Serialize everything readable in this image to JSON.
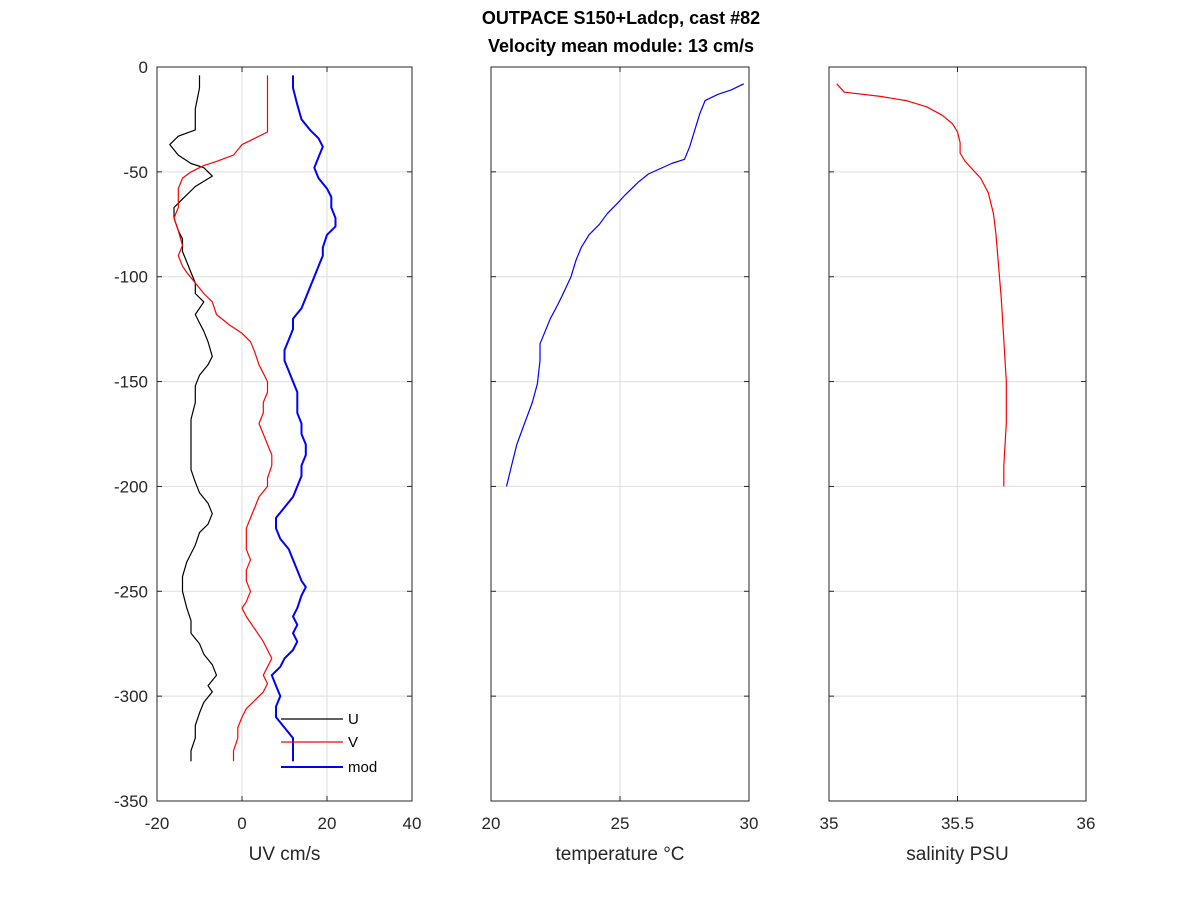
{
  "figure": {
    "title_line1": "OUTPACE S150+Ladcp, cast #82",
    "title_line2": "Velocity mean module:  13 cm/s"
  },
  "chart_data": [
    {
      "type": "line",
      "xlabel": "UV cm/s",
      "ylabel": "",
      "xlim": [
        -20,
        40
      ],
      "ylim": [
        -350,
        0
      ],
      "xticks": [
        -20,
        0,
        20,
        40
      ],
      "yticks": [
        -350,
        -300,
        -250,
        -200,
        -150,
        -100,
        -50,
        0
      ],
      "xtick_labels": [
        "-20",
        "0",
        "20",
        "40"
      ],
      "ytick_labels": [
        "-350",
        "-300",
        "-250",
        "-200",
        "-150",
        "-100",
        "-50",
        "0"
      ],
      "grid": true,
      "legend": "bottom-right",
      "series": [
        {
          "name": "U",
          "color": "#000000",
          "points": [
            [
              -10,
              -4
            ],
            [
              -10,
              -10
            ],
            [
              -11,
              -20
            ],
            [
              -11,
              -30
            ],
            [
              -15,
              -33
            ],
            [
              -17,
              -37
            ],
            [
              -15,
              -42
            ],
            [
              -12,
              -46
            ],
            [
              -9,
              -48
            ],
            [
              -7,
              -52
            ],
            [
              -11,
              -57
            ],
            [
              -14,
              -63
            ],
            [
              -16,
              -67
            ],
            [
              -16,
              -72
            ],
            [
              -15,
              -78
            ],
            [
              -14,
              -82
            ],
            [
              -14,
              -88
            ],
            [
              -13,
              -93
            ],
            [
              -12,
              -98
            ],
            [
              -11,
              -103
            ],
            [
              -11,
              -108
            ],
            [
              -9,
              -112
            ],
            [
              -11,
              -118
            ],
            [
              -10,
              -122
            ],
            [
              -9,
              -126
            ],
            [
              -8,
              -131
            ],
            [
              -7,
              -138
            ],
            [
              -8,
              -142
            ],
            [
              -10,
              -147
            ],
            [
              -11,
              -152
            ],
            [
              -11,
              -160
            ],
            [
              -12,
              -168
            ],
            [
              -12,
              -176
            ],
            [
              -12,
              -184
            ],
            [
              -12,
              -192
            ],
            [
              -11,
              -198
            ],
            [
              -10,
              -203
            ],
            [
              -8,
              -208
            ],
            [
              -7,
              -213
            ],
            [
              -8,
              -218
            ],
            [
              -10,
              -222
            ],
            [
              -11,
              -228
            ],
            [
              -13,
              -236
            ],
            [
              -14,
              -243
            ],
            [
              -14,
              -250
            ],
            [
              -13,
              -258
            ],
            [
              -12,
              -264
            ],
            [
              -12,
              -270
            ],
            [
              -10,
              -275
            ],
            [
              -9,
              -280
            ],
            [
              -7,
              -285
            ],
            [
              -6,
              -290
            ],
            [
              -8,
              -295
            ],
            [
              -7,
              -298
            ],
            [
              -9,
              -303
            ],
            [
              -10,
              -308
            ],
            [
              -11,
              -314
            ],
            [
              -11,
              -320
            ],
            [
              -12,
              -326
            ],
            [
              -12,
              -331
            ]
          ]
        },
        {
          "name": "V",
          "color": "#ff0000",
          "points": [
            [
              6,
              -4
            ],
            [
              6,
              -15
            ],
            [
              6,
              -25
            ],
            [
              6,
              -31
            ],
            [
              2,
              -35
            ],
            [
              0,
              -37
            ],
            [
              -2,
              -42
            ],
            [
              -6,
              -45
            ],
            [
              -9,
              -47
            ],
            [
              -12,
              -50
            ],
            [
              -14,
              -53
            ],
            [
              -15,
              -58
            ],
            [
              -15,
              -63
            ],
            [
              -15,
              -67
            ],
            [
              -16,
              -72
            ],
            [
              -15,
              -78
            ],
            [
              -14,
              -85
            ],
            [
              -15,
              -90
            ],
            [
              -14,
              -95
            ],
            [
              -13,
              -98
            ],
            [
              -11,
              -103
            ],
            [
              -9,
              -108
            ],
            [
              -7,
              -112
            ],
            [
              -6,
              -118
            ],
            [
              -3,
              -123
            ],
            [
              0,
              -127
            ],
            [
              2,
              -131
            ],
            [
              3,
              -136
            ],
            [
              4,
              -142
            ],
            [
              5,
              -146
            ],
            [
              6,
              -150
            ],
            [
              6,
              -155
            ],
            [
              5,
              -160
            ],
            [
              5,
              -165
            ],
            [
              4,
              -170
            ],
            [
              5,
              -175
            ],
            [
              6,
              -180
            ],
            [
              7,
              -185
            ],
            [
              7,
              -190
            ],
            [
              6,
              -196
            ],
            [
              6,
              -200
            ],
            [
              4,
              -205
            ],
            [
              3,
              -210
            ],
            [
              2,
              -215
            ],
            [
              1,
              -220
            ],
            [
              1,
              -225
            ],
            [
              1,
              -230
            ],
            [
              2,
              -235
            ],
            [
              1,
              -240
            ],
            [
              1,
              -245
            ],
            [
              2,
              -250
            ],
            [
              1,
              -255
            ],
            [
              0,
              -258
            ],
            [
              1,
              -262
            ],
            [
              3,
              -268
            ],
            [
              5,
              -274
            ],
            [
              6,
              -278
            ],
            [
              7,
              -282
            ],
            [
              6,
              -286
            ],
            [
              5,
              -290
            ],
            [
              6,
              -294
            ],
            [
              5,
              -298
            ],
            [
              3,
              -302
            ],
            [
              1,
              -306
            ],
            [
              0,
              -310
            ],
            [
              -1,
              -315
            ],
            [
              -1,
              -320
            ],
            [
              -2,
              -326
            ],
            [
              -2,
              -331
            ]
          ]
        },
        {
          "name": "mod",
          "color": "#0000ff",
          "points": [
            [
              12,
              -4
            ],
            [
              12,
              -10
            ],
            [
              13,
              -18
            ],
            [
              14,
              -25
            ],
            [
              16,
              -30
            ],
            [
              18,
              -34
            ],
            [
              19,
              -38
            ],
            [
              18,
              -43
            ],
            [
              17,
              -48
            ],
            [
              18,
              -53
            ],
            [
              20,
              -58
            ],
            [
              21,
              -62
            ],
            [
              21,
              -67
            ],
            [
              22,
              -72
            ],
            [
              22,
              -76
            ],
            [
              20,
              -80
            ],
            [
              19,
              -86
            ],
            [
              19,
              -90
            ],
            [
              18,
              -95
            ],
            [
              17,
              -100
            ],
            [
              16,
              -105
            ],
            [
              15,
              -110
            ],
            [
              14,
              -115
            ],
            [
              12,
              -120
            ],
            [
              12,
              -125
            ],
            [
              11,
              -130
            ],
            [
              10,
              -135
            ],
            [
              10,
              -140
            ],
            [
              11,
              -145
            ],
            [
              12,
              -150
            ],
            [
              13,
              -155
            ],
            [
              13,
              -160
            ],
            [
              13,
              -165
            ],
            [
              14,
              -170
            ],
            [
              14,
              -175
            ],
            [
              15,
              -180
            ],
            [
              15,
              -185
            ],
            [
              14,
              -190
            ],
            [
              14,
              -195
            ],
            [
              13,
              -200
            ],
            [
              12,
              -205
            ],
            [
              10,
              -210
            ],
            [
              8,
              -215
            ],
            [
              8,
              -220
            ],
            [
              9,
              -225
            ],
            [
              11,
              -230
            ],
            [
              12,
              -235
            ],
            [
              13,
              -240
            ],
            [
              14,
              -245
            ],
            [
              15,
              -248
            ],
            [
              14,
              -252
            ],
            [
              13,
              -258
            ],
            [
              12,
              -262
            ],
            [
              13,
              -266
            ],
            [
              12,
              -270
            ],
            [
              13,
              -274
            ],
            [
              12,
              -278
            ],
            [
              10,
              -282
            ],
            [
              9,
              -286
            ],
            [
              7,
              -290
            ],
            [
              8,
              -295
            ],
            [
              9,
              -300
            ],
            [
              8,
              -305
            ],
            [
              8,
              -310
            ],
            [
              10,
              -315
            ],
            [
              12,
              -320
            ],
            [
              12,
              -325
            ],
            [
              12,
              -331
            ]
          ]
        }
      ]
    },
    {
      "type": "line",
      "xlabel": "temperature °C",
      "ylabel": "",
      "xlim": [
        20,
        30
      ],
      "ylim": [
        -350,
        0
      ],
      "xticks": [
        20,
        25,
        30
      ],
      "yticks": [
        -350,
        -300,
        -250,
        -200,
        -150,
        -100,
        -50,
        0
      ],
      "xtick_labels": [
        "20",
        "25",
        "30"
      ],
      "grid": true,
      "series": [
        {
          "color": "#0000ff",
          "points": [
            [
              29.8,
              -8
            ],
            [
              29.3,
              -11
            ],
            [
              28.8,
              -13
            ],
            [
              28.3,
              -16
            ],
            [
              28.1,
              -22
            ],
            [
              27.9,
              -30
            ],
            [
              27.7,
              -38
            ],
            [
              27.5,
              -44
            ],
            [
              27.0,
              -46
            ],
            [
              26.1,
              -51
            ],
            [
              25.7,
              -55
            ],
            [
              25.2,
              -61
            ],
            [
              24.9,
              -65
            ],
            [
              24.5,
              -70
            ],
            [
              24.2,
              -75
            ],
            [
              23.8,
              -80
            ],
            [
              23.5,
              -86
            ],
            [
              23.3,
              -92
            ],
            [
              23.1,
              -100
            ],
            [
              22.8,
              -108
            ],
            [
              22.6,
              -113
            ],
            [
              22.3,
              -120
            ],
            [
              22.1,
              -126
            ],
            [
              21.9,
              -132
            ],
            [
              21.9,
              -140
            ],
            [
              21.8,
              -151
            ],
            [
              21.6,
              -160
            ],
            [
              21.3,
              -170
            ],
            [
              21.0,
              -180
            ],
            [
              20.8,
              -190
            ],
            [
              20.6,
              -200
            ]
          ]
        }
      ]
    },
    {
      "type": "line",
      "xlabel": "salinity PSU",
      "ylabel": "",
      "xlim": [
        35,
        36
      ],
      "ylim": [
        -350,
        0
      ],
      "xticks": [
        35,
        35.5,
        36
      ],
      "yticks": [
        -350,
        -300,
        -250,
        -200,
        -150,
        -100,
        -50,
        0
      ],
      "xtick_labels": [
        "35",
        "35.5",
        "36"
      ],
      "grid": true,
      "series": [
        {
          "color": "#ff0000",
          "points": [
            [
              35.03,
              -8
            ],
            [
              35.06,
              -12
            ],
            [
              35.2,
              -14
            ],
            [
              35.3,
              -16
            ],
            [
              35.38,
              -19
            ],
            [
              35.44,
              -23
            ],
            [
              35.48,
              -27
            ],
            [
              35.5,
              -31
            ],
            [
              35.51,
              -36
            ],
            [
              35.51,
              -41
            ],
            [
              35.53,
              -45
            ],
            [
              35.56,
              -49
            ],
            [
              35.59,
              -53
            ],
            [
              35.62,
              -60
            ],
            [
              35.64,
              -70
            ],
            [
              35.65,
              -80
            ],
            [
              35.66,
              -95
            ],
            [
              35.67,
              -110
            ],
            [
              35.68,
              -130
            ],
            [
              35.69,
              -150
            ],
            [
              35.69,
              -170
            ],
            [
              35.68,
              -190
            ],
            [
              35.68,
              -200
            ]
          ]
        }
      ]
    }
  ]
}
